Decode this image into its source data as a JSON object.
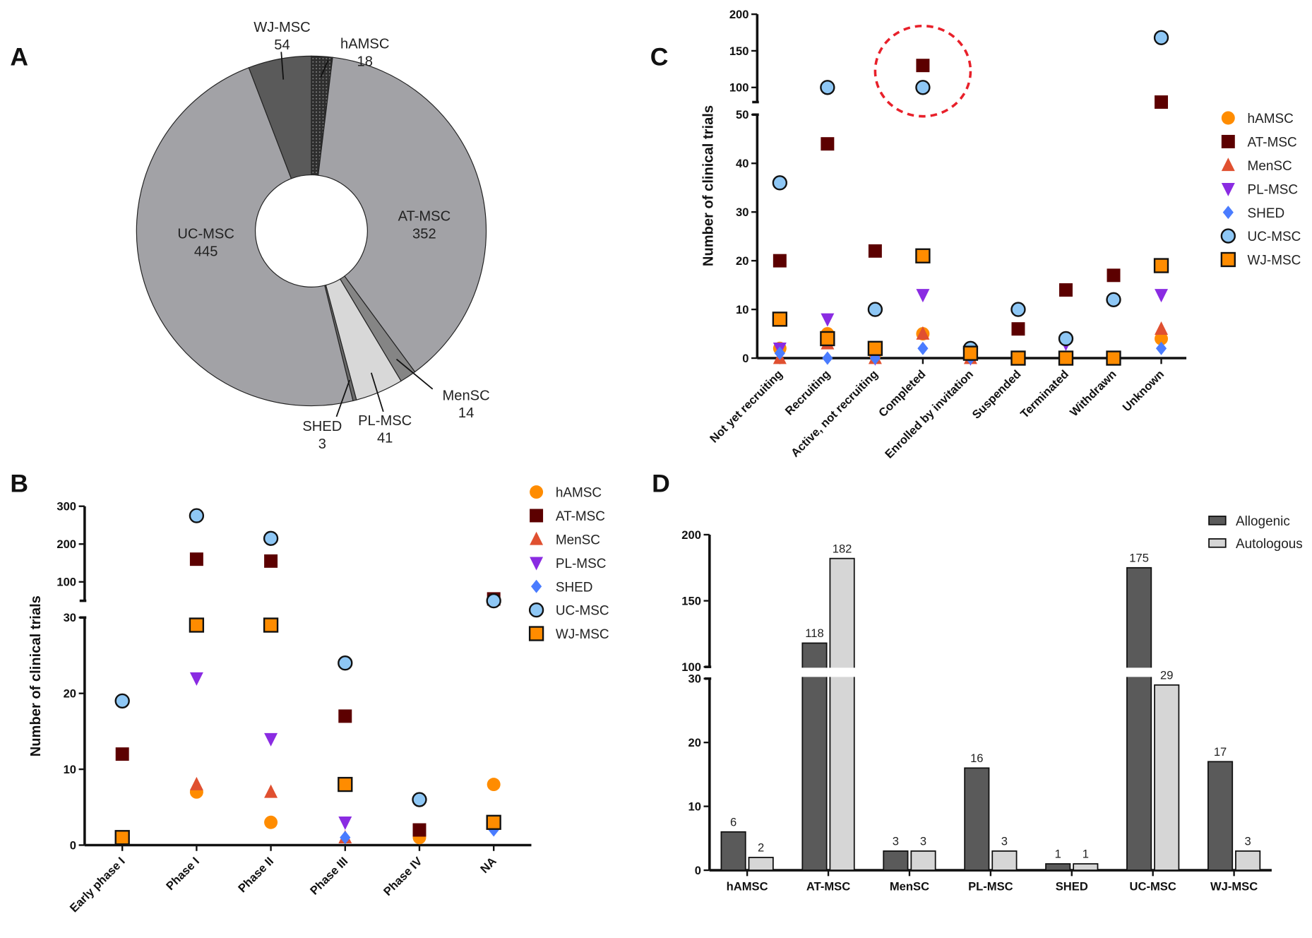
{
  "panel_labels": {
    "a": "A",
    "b": "B",
    "c": "C",
    "d": "D"
  },
  "marker_styles": {
    "hAMSC": {
      "shape": "circle",
      "color": "#ff8c00",
      "outline": false
    },
    "AT-MSC": {
      "shape": "square",
      "color": "#5c0000",
      "outline": false
    },
    "MenSC": {
      "shape": "triangle-up",
      "color": "#e05030",
      "outline": false
    },
    "PL-MSC": {
      "shape": "triangle-down",
      "color": "#8a2be2",
      "outline": false
    },
    "SHED": {
      "shape": "diamond",
      "color": "#4a7cff",
      "outline": false
    },
    "UC-MSC": {
      "shape": "circle",
      "color": "#8ec7f5",
      "outline": true
    },
    "WJ-MSC": {
      "shape": "square",
      "color": "#ff8c00",
      "outline": true
    }
  },
  "chart_data": [
    {
      "panel": "A",
      "type": "pie",
      "donut": true,
      "slices": [
        {
          "label": "hAMSC",
          "value": 18,
          "color": "#3a3a3a",
          "pattern": "dotted"
        },
        {
          "label": "AT-MSC",
          "value": 352,
          "color": "#a2a2a6"
        },
        {
          "label": "MenSC",
          "value": 14,
          "color": "#858585"
        },
        {
          "label": "PL-MSC",
          "value": 41,
          "color": "#d8d8d8"
        },
        {
          "label": "SHED",
          "value": 3,
          "color": "#6a6a6a"
        },
        {
          "label": "UC-MSC",
          "value": 445,
          "color": "#a2a2a6"
        },
        {
          "label": "WJ-MSC",
          "value": 54,
          "color": "#5a5a5a"
        }
      ]
    },
    {
      "panel": "B",
      "type": "scatter",
      "ylabel": "Number of clinical trials",
      "categories": [
        "Early phase I",
        "Phase I",
        "Phase II",
        "Phase III",
        "Phase IV",
        "NA"
      ],
      "y_segments": [
        {
          "range": [
            0,
            30
          ],
          "ticks": [
            0,
            10,
            20,
            30
          ]
        },
        {
          "range": [
            50,
            300
          ],
          "ticks": [
            100,
            200,
            300
          ]
        }
      ],
      "legend_position": "top-right",
      "series": [
        {
          "name": "hAMSC",
          "values": [
            null,
            7,
            3,
            null,
            1,
            8
          ]
        },
        {
          "name": "AT-MSC",
          "values": [
            12,
            160,
            155,
            17,
            2,
            55
          ]
        },
        {
          "name": "MenSC",
          "values": [
            null,
            8,
            7,
            1,
            null,
            3
          ]
        },
        {
          "name": "PL-MSC",
          "values": [
            null,
            22,
            14,
            3,
            null,
            null
          ]
        },
        {
          "name": "SHED",
          "values": [
            null,
            null,
            null,
            1,
            null,
            2
          ]
        },
        {
          "name": "UC-MSC",
          "values": [
            19,
            275,
            215,
            24,
            6,
            45
          ]
        },
        {
          "name": "WJ-MSC",
          "values": [
            1,
            29,
            29,
            8,
            null,
            3
          ]
        }
      ]
    },
    {
      "panel": "C",
      "type": "scatter",
      "ylabel": "Number of clinical trials",
      "categories": [
        "Not yet recruiting",
        "Recruiting",
        "Active, not recruiting",
        "Completed",
        "Enrolled by invitation",
        "Suspended",
        "Terminated",
        "Withdrawn",
        "Unknown"
      ],
      "y_segments": [
        {
          "range": [
            0,
            50
          ],
          "ticks": [
            0,
            10,
            20,
            30,
            40,
            50
          ]
        },
        {
          "range": [
            80,
            200
          ],
          "ticks": [
            100,
            150,
            200
          ]
        }
      ],
      "legend_position": "right",
      "highlight": {
        "category": "Completed",
        "style": "red dashed circle"
      },
      "series": [
        {
          "name": "hAMSC",
          "values": [
            2,
            5,
            1,
            5,
            1,
            0,
            0,
            0,
            4
          ]
        },
        {
          "name": "AT-MSC",
          "values": [
            20,
            44,
            22,
            130,
            1,
            6,
            14,
            17,
            80
          ]
        },
        {
          "name": "MenSC",
          "values": [
            0,
            3,
            0,
            5,
            0,
            0,
            0,
            0,
            6
          ]
        },
        {
          "name": "PL-MSC",
          "values": [
            2,
            8,
            0,
            13,
            0,
            0,
            3,
            0,
            13
          ]
        },
        {
          "name": "SHED",
          "values": [
            1,
            0,
            0,
            2,
            0,
            0,
            0,
            0,
            2
          ]
        },
        {
          "name": "UC-MSC",
          "values": [
            36,
            100,
            10,
            100,
            2,
            10,
            4,
            12,
            168
          ]
        },
        {
          "name": "WJ-MSC",
          "values": [
            8,
            4,
            2,
            21,
            1,
            0,
            0,
            0,
            19
          ]
        }
      ]
    },
    {
      "panel": "D",
      "type": "bar",
      "categories": [
        "hAMSC",
        "AT-MSC",
        "MenSC",
        "PL-MSC",
        "SHED",
        "UC-MSC",
        "WJ-MSC"
      ],
      "y_segments": [
        {
          "range": [
            0,
            30
          ],
          "ticks": [
            0,
            10,
            20,
            30
          ]
        },
        {
          "range": [
            100,
            200
          ],
          "ticks": [
            100,
            150,
            200
          ]
        }
      ],
      "legend_position": "top-right",
      "series": [
        {
          "name": "Allogenic",
          "color": "#5a5a5a",
          "values": [
            6,
            118,
            3,
            16,
            1,
            175,
            17
          ]
        },
        {
          "name": "Autologous",
          "color": "#d6d6d6",
          "values": [
            2,
            182,
            3,
            3,
            1,
            29,
            3
          ]
        }
      ]
    }
  ]
}
